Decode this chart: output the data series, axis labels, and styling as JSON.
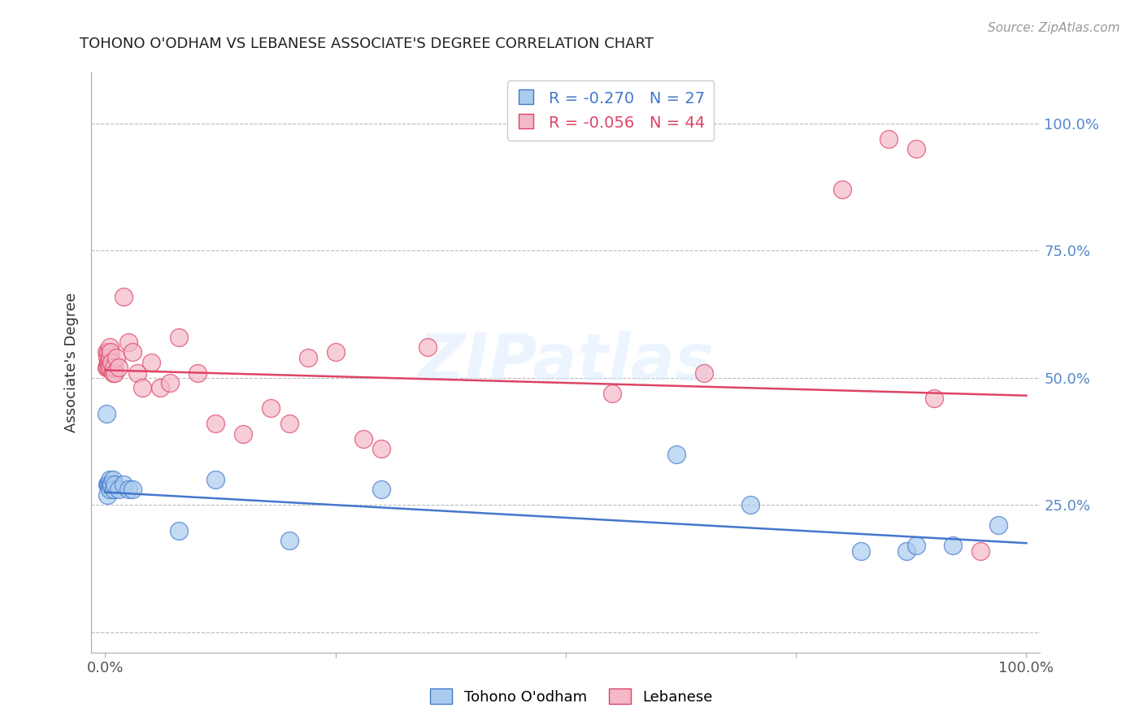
{
  "title": "TOHONO O'ODHAM VS LEBANESE ASSOCIATE'S DEGREE CORRELATION CHART",
  "source": "Source: ZipAtlas.com",
  "ylabel": "Associate's Degree",
  "background_color": "#ffffff",
  "grid_color": "#bbbbbb",
  "watermark": "ZIPatlas",
  "tohono_R": -0.27,
  "tohono_N": 27,
  "lebanese_R": -0.056,
  "lebanese_N": 44,
  "tohono_color": "#aaccee",
  "lebanese_color": "#f4b8c8",
  "tohono_line_color": "#4477cc",
  "lebanese_line_color": "#dd4466",
  "tohono_x": [
    0.001,
    0.002,
    0.002,
    0.003,
    0.004,
    0.005,
    0.005,
    0.006,
    0.007,
    0.008,
    0.009,
    0.01,
    0.015,
    0.02,
    0.025,
    0.03,
    0.08,
    0.12,
    0.2,
    0.3,
    0.62,
    0.7,
    0.82,
    0.87,
    0.88,
    0.92,
    0.97
  ],
  "tohono_y": [
    0.43,
    0.29,
    0.27,
    0.29,
    0.29,
    0.28,
    0.3,
    0.29,
    0.29,
    0.3,
    0.28,
    0.29,
    0.28,
    0.29,
    0.28,
    0.28,
    0.2,
    0.3,
    0.18,
    0.28,
    0.35,
    0.25,
    0.16,
    0.16,
    0.17,
    0.17,
    0.21
  ],
  "lebanese_x": [
    0.001,
    0.001,
    0.002,
    0.002,
    0.003,
    0.003,
    0.004,
    0.004,
    0.005,
    0.005,
    0.006,
    0.006,
    0.007,
    0.008,
    0.009,
    0.01,
    0.012,
    0.015,
    0.02,
    0.025,
    0.03,
    0.035,
    0.04,
    0.05,
    0.06,
    0.07,
    0.08,
    0.1,
    0.12,
    0.15,
    0.18,
    0.2,
    0.22,
    0.25,
    0.28,
    0.3,
    0.35,
    0.55,
    0.65,
    0.8,
    0.85,
    0.88,
    0.9,
    0.95
  ],
  "lebanese_y": [
    0.52,
    0.55,
    0.52,
    0.54,
    0.53,
    0.55,
    0.53,
    0.52,
    0.54,
    0.56,
    0.52,
    0.55,
    0.53,
    0.51,
    0.52,
    0.51,
    0.54,
    0.52,
    0.66,
    0.57,
    0.55,
    0.51,
    0.48,
    0.53,
    0.48,
    0.49,
    0.58,
    0.51,
    0.41,
    0.39,
    0.44,
    0.41,
    0.54,
    0.55,
    0.38,
    0.36,
    0.56,
    0.47,
    0.51,
    0.87,
    0.97,
    0.95,
    0.46,
    0.16
  ],
  "tohono_line_start_y": 0.275,
  "tohono_line_end_y": 0.175,
  "lebanese_line_start_y": 0.515,
  "lebanese_line_end_y": 0.465,
  "ytick_vals": [
    0.0,
    0.25,
    0.5,
    0.75,
    1.0
  ],
  "ytick_labels": [
    "",
    "25.0%",
    "50.0%",
    "75.0%",
    "100.0%"
  ],
  "xtick_vals": [
    0.0,
    0.25,
    0.5,
    0.75,
    1.0
  ],
  "xtick_labels": [
    "0.0%",
    "",
    "",
    "",
    "100.0%"
  ]
}
